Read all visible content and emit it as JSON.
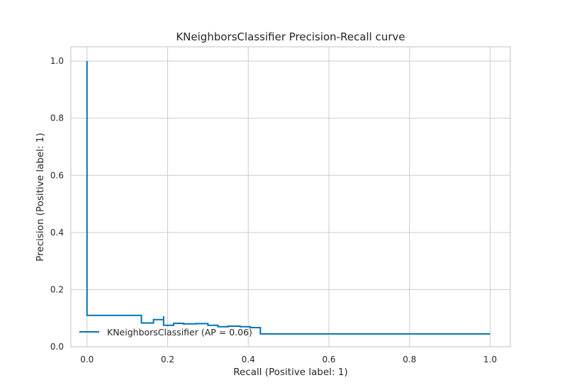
{
  "chart_data": {
    "type": "line",
    "title": "KNeighborsClassifier Precision-Recall curve",
    "xlabel": "Recall (Positive label: 1)",
    "ylabel": "Precision (Positive label: 1)",
    "xlim": [
      -0.04,
      1.05
    ],
    "ylim": [
      0,
      1.05
    ],
    "xticks": [
      "0.0",
      "0.2",
      "0.4",
      "0.6",
      "0.8",
      "1.0"
    ],
    "yticks": [
      "0.0",
      "0.2",
      "0.4",
      "0.6",
      "0.8",
      "1.0"
    ],
    "grid": true,
    "legend_position": "lower-left",
    "colors": {
      "line": "#0072b2",
      "grid": "#cccccc",
      "frame": "#cccccc"
    },
    "series": [
      {
        "name": "KNeighborsClassifier (AP = 0.06)",
        "step": "post",
        "x": [
          0.0,
          0.0,
          0.135,
          0.135,
          0.165,
          0.19,
          0.19,
          0.215,
          0.24,
          0.24,
          0.27,
          0.3,
          0.325,
          0.35,
          0.38,
          0.405,
          0.43,
          0.43,
          1.0
        ],
        "y": [
          1.0,
          0.11,
          0.11,
          0.083,
          0.095,
          0.107,
          0.075,
          0.082,
          0.077,
          0.08,
          0.081,
          0.075,
          0.07,
          0.072,
          0.07,
          0.067,
          0.065,
          0.045,
          0.045
        ]
      }
    ]
  }
}
